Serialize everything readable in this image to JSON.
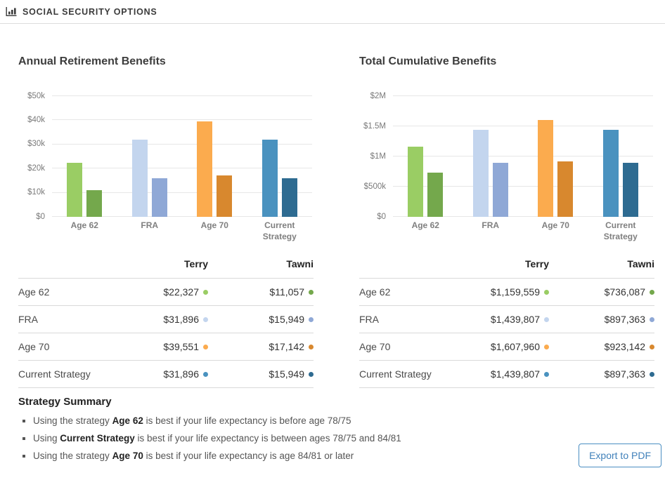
{
  "header": {
    "title": "SOCIAL SECURITY OPTIONS"
  },
  "colors": {
    "terry": [
      "#9acd64",
      "#c3d5ee",
      "#fbab4e",
      "#4a92bf"
    ],
    "tawni": [
      "#74a84c",
      "#8fa8d6",
      "#d8882e",
      "#2e6b91"
    ],
    "accent_blue": "#4181ba",
    "gridline": "#e7e7e7"
  },
  "chart_data": [
    {
      "type": "bar",
      "title": "Annual Retirement Benefits",
      "categories": [
        "Age 62",
        "FRA",
        "Age 70",
        "Current Strategy"
      ],
      "series": [
        {
          "name": "Terry",
          "values": [
            22327,
            31896,
            39551,
            31896
          ],
          "colors": [
            "#9acd64",
            "#c3d5ee",
            "#fbab4e",
            "#4a92bf"
          ]
        },
        {
          "name": "Tawni",
          "values": [
            11057,
            15949,
            17142,
            15949
          ],
          "colors": [
            "#74a84c",
            "#8fa8d6",
            "#d8882e",
            "#2e6b91"
          ]
        }
      ],
      "ylim": [
        0,
        50000
      ],
      "yticks": [
        {
          "label": "$0",
          "value": 0
        },
        {
          "label": "$10k",
          "value": 10000
        },
        {
          "label": "$20k",
          "value": 20000
        },
        {
          "label": "$30k",
          "value": 30000
        },
        {
          "label": "$40k",
          "value": 40000
        },
        {
          "label": "$50k",
          "value": 50000
        }
      ],
      "grid": "horizontal",
      "legend": "none"
    },
    {
      "type": "bar",
      "title": "Total Cumulative Benefits",
      "categories": [
        "Age 62",
        "FRA",
        "Age 70",
        "Current Strategy"
      ],
      "series": [
        {
          "name": "Terry",
          "values": [
            1159559,
            1439807,
            1607960,
            1439807
          ],
          "colors": [
            "#9acd64",
            "#c3d5ee",
            "#fbab4e",
            "#4a92bf"
          ]
        },
        {
          "name": "Tawni",
          "values": [
            736087,
            897363,
            923142,
            897363
          ],
          "colors": [
            "#74a84c",
            "#8fa8d6",
            "#d8882e",
            "#2e6b91"
          ]
        }
      ],
      "ylim": [
        0,
        2000000
      ],
      "yticks": [
        {
          "label": "$0",
          "value": 0
        },
        {
          "label": "$500k",
          "value": 500000
        },
        {
          "label": "$1M",
          "value": 1000000
        },
        {
          "label": "$1.5M",
          "value": 1500000
        },
        {
          "label": "$2M",
          "value": 2000000
        }
      ],
      "grid": "horizontal",
      "legend": "none"
    }
  ],
  "tables": {
    "columns": [
      "Terry",
      "Tawni"
    ],
    "annual": {
      "rows": [
        {
          "label": "Age 62",
          "terry": "$22,327",
          "tawni": "$11,057"
        },
        {
          "label": "FRA",
          "terry": "$31,896",
          "tawni": "$15,949"
        },
        {
          "label": "Age 70",
          "terry": "$39,551",
          "tawni": "$17,142"
        },
        {
          "label": "Current Strategy",
          "terry": "$31,896",
          "tawni": "$15,949"
        }
      ]
    },
    "cumulative": {
      "rows": [
        {
          "label": "Age 62",
          "terry": "$1,159,559",
          "tawni": "$736,087"
        },
        {
          "label": "FRA",
          "terry": "$1,439,807",
          "tawni": "$897,363"
        },
        {
          "label": "Age 70",
          "terry": "$1,607,960",
          "tawni": "$923,142"
        },
        {
          "label": "Current Strategy",
          "terry": "$1,439,807",
          "tawni": "$897,363"
        }
      ]
    }
  },
  "summary": {
    "title": "Strategy Summary",
    "bullets": [
      {
        "pre": "Using the strategy ",
        "bold": "Age 62",
        "post": " is best if your life expectancy is before age 78/75"
      },
      {
        "pre": "Using ",
        "bold": "Current Strategy",
        "post": " is best if your life expectancy is between ages 78/75 and 84/81"
      },
      {
        "pre": "Using the strategy ",
        "bold": "Age 70",
        "post": " is best if your life expectancy is age 84/81 or later"
      }
    ]
  },
  "export_button": "Export to PDF"
}
